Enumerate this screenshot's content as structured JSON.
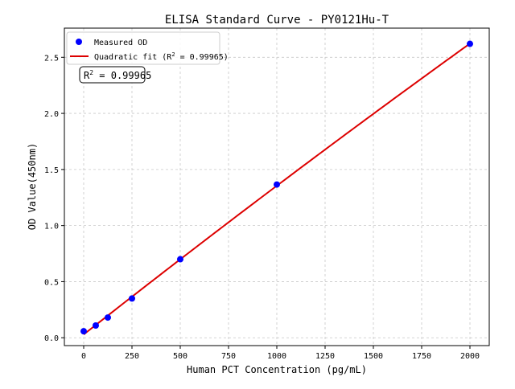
{
  "chart_data": {
    "type": "scatter",
    "title": "ELISA Standard Curve - PY0121Hu-T",
    "xlabel": "Human PCT Concentration (pg/mL)",
    "ylabel": "OD Value(450nm)",
    "xlim": [
      -100,
      2100
    ],
    "ylim": [
      -0.07,
      2.76
    ],
    "xticks": [
      0,
      250,
      500,
      750,
      1000,
      1250,
      1500,
      1750,
      2000
    ],
    "yticks": [
      0.0,
      0.5,
      1.0,
      1.5,
      2.0,
      2.5
    ],
    "xtick_labels": [
      "0",
      "250",
      "500",
      "750",
      "1000",
      "1250",
      "1500",
      "1750",
      "2000"
    ],
    "ytick_labels": [
      "0.0",
      "0.5",
      "1.0",
      "1.5",
      "2.0",
      "2.5"
    ],
    "grid": true,
    "legend_placement": "top-left",
    "series": [
      {
        "name": "Measured OD",
        "kind": "scatter",
        "color": "#0000ff",
        "x": [
          0,
          62.5,
          125,
          250,
          500,
          1000,
          2000
        ],
        "y": [
          0.058,
          0.109,
          0.18,
          0.35,
          0.7,
          1.366,
          2.62
        ]
      },
      {
        "name": "Quadratic fit (R² = 0.99965)",
        "kind": "line",
        "color": "#dd0000",
        "fit": "quadratic"
      }
    ],
    "legend": {
      "entries": [
        "Measured OD",
        "Quadratic fit (R"
      ],
      "fit_label_prefix": "Quadratic fit (R",
      "fit_label_suffix": " = 0.99965)"
    },
    "annotation": {
      "prefix": "R",
      "sup": "2",
      "value": " = 0.99965"
    }
  }
}
